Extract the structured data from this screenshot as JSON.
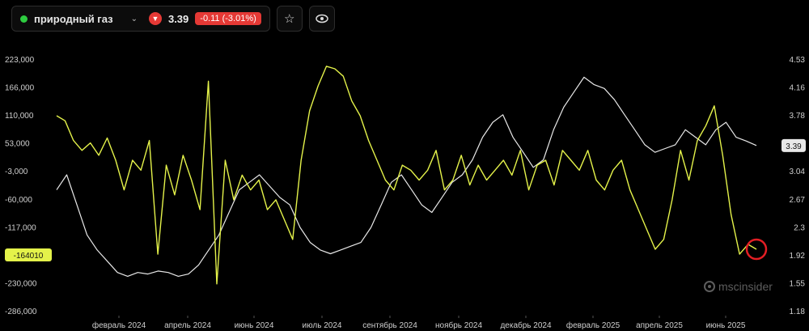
{
  "header": {
    "asset_name": "природный газ",
    "price": "3.39",
    "change": "-0.11 (-3.01%)",
    "star_icon": "star-icon",
    "eye_icon": "eye-icon"
  },
  "brand": {
    "name": "mscinsider"
  },
  "colors": {
    "series_yellow": "#e4f24a",
    "series_white": "#e8e8e8",
    "marker": "#e31e24",
    "down": "#e53935"
  },
  "chart_data": {
    "type": "line",
    "x_tick_labels": [
      "февраль 2024",
      "апрель 2024",
      "июнь 2024",
      "июль 2024",
      "сентябрь 2024",
      "ноябрь 2024",
      "декабрь 2024",
      "февраль 2025",
      "апрель 2025",
      "июнь 2025"
    ],
    "y_left_ticks": [
      "223,000",
      "166,000",
      "110,000",
      "53,000",
      "-3,000",
      "-60,000",
      "-117,000",
      "-174,000",
      "-230,000",
      "-286,000"
    ],
    "y_right_ticks": [
      "4.53",
      "4.16",
      "3.78",
      "3.41",
      "3.04",
      "2.67",
      "2.3",
      "1.92",
      "1.55",
      "1.18"
    ],
    "y_left_range": [
      -286000,
      223000
    ],
    "y_right_range": [
      1.18,
      4.53
    ],
    "last_left_label": "-164010",
    "last_right_label": "3.39",
    "series": [
      {
        "axis": "left",
        "color": "#e4f24a",
        "values": [
          110000,
          100000,
          60000,
          40000,
          55000,
          30000,
          65000,
          20000,
          -40000,
          20000,
          0,
          60000,
          -170000,
          10000,
          -50000,
          30000,
          -20000,
          -80000,
          180000,
          -230000,
          20000,
          -60000,
          -10000,
          -40000,
          -20000,
          -80000,
          -60000,
          -100000,
          -140000,
          20000,
          120000,
          170000,
          210000,
          205000,
          190000,
          140000,
          110000,
          60000,
          20000,
          -20000,
          -40000,
          10000,
          0,
          -20000,
          0,
          40000,
          -40000,
          -20000,
          30000,
          -30000,
          10000,
          -20000,
          0,
          20000,
          -10000,
          40000,
          -40000,
          10000,
          20000,
          -30000,
          40000,
          20000,
          0,
          40000,
          -20000,
          -40000,
          0,
          20000,
          -40000,
          -80000,
          -120000,
          -160000,
          -140000,
          -60000,
          40000,
          -20000,
          60000,
          90000,
          130000,
          30000,
          -90000,
          -170000,
          -150000,
          -160000
        ]
      },
      {
        "axis": "right",
        "color": "#e8e8e8",
        "values": [
          2.8,
          3.0,
          2.6,
          2.2,
          2.0,
          1.85,
          1.7,
          1.65,
          1.7,
          1.68,
          1.72,
          1.7,
          1.65,
          1.68,
          1.8,
          2.0,
          2.2,
          2.5,
          2.8,
          2.9,
          3.0,
          2.85,
          2.7,
          2.6,
          2.3,
          2.1,
          2.0,
          1.95,
          2.0,
          2.05,
          2.1,
          2.3,
          2.6,
          2.9,
          3.0,
          2.8,
          2.6,
          2.5,
          2.7,
          2.9,
          3.0,
          3.2,
          3.5,
          3.7,
          3.8,
          3.5,
          3.3,
          3.1,
          3.2,
          3.6,
          3.9,
          4.1,
          4.3,
          4.2,
          4.15,
          4.0,
          3.8,
          3.6,
          3.4,
          3.3,
          3.35,
          3.4,
          3.6,
          3.5,
          3.4,
          3.6,
          3.7,
          3.5,
          3.45,
          3.39
        ]
      }
    ]
  }
}
